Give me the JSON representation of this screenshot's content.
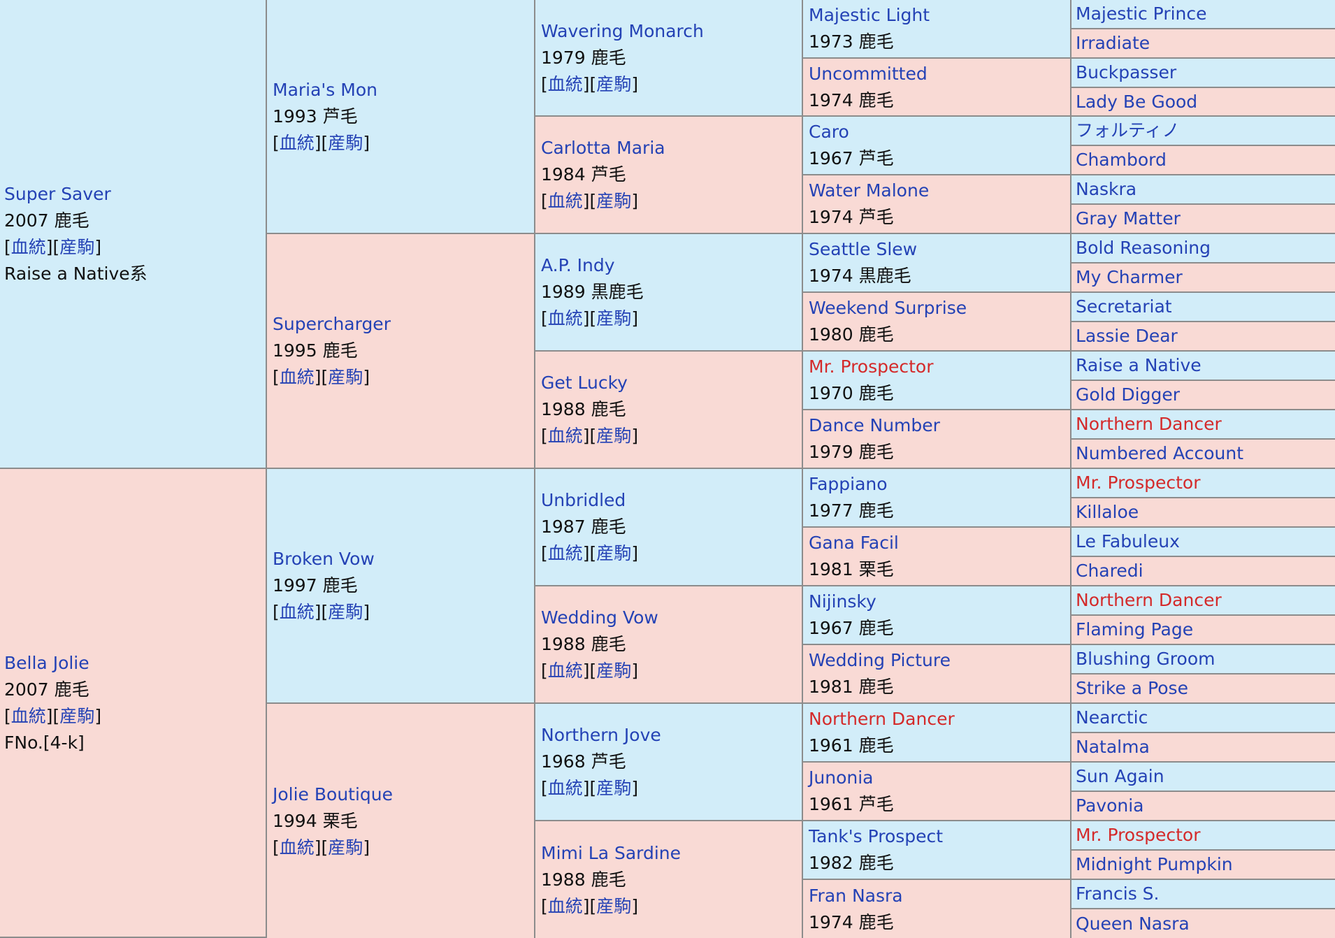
{
  "links": {
    "pedigree": "血統",
    "progeny": "産駒"
  },
  "gen1": [
    {
      "name": "Super Saver",
      "info": "2007 鹿毛",
      "extra": "Raise a Native系",
      "sex": "m"
    },
    {
      "name": "Bella Jolie",
      "info": "2007 鹿毛",
      "extra": "FNo.[4-k]",
      "sex": "f"
    }
  ],
  "gen2": [
    {
      "name": "Maria's Mon",
      "info": "1993 芦毛",
      "sex": "m"
    },
    {
      "name": "Supercharger",
      "info": "1995 鹿毛",
      "sex": "f"
    },
    {
      "name": "Broken Vow",
      "info": "1997 鹿毛",
      "sex": "m"
    },
    {
      "name": "Jolie Boutique",
      "info": "1994 栗毛",
      "sex": "f"
    }
  ],
  "gen3": [
    {
      "name": "Wavering Monarch",
      "info": "1979 鹿毛",
      "sex": "m"
    },
    {
      "name": "Carlotta Maria",
      "info": "1984 芦毛",
      "sex": "f"
    },
    {
      "name": "A.P. Indy",
      "info": "1989 黒鹿毛",
      "sex": "m"
    },
    {
      "name": "Get Lucky",
      "info": "1988 鹿毛",
      "sex": "f"
    },
    {
      "name": "Unbridled",
      "info": "1987 鹿毛",
      "sex": "m"
    },
    {
      "name": "Wedding Vow",
      "info": "1988 鹿毛",
      "sex": "f"
    },
    {
      "name": "Northern Jove",
      "info": "1968 芦毛",
      "sex": "m"
    },
    {
      "name": "Mimi La Sardine",
      "info": "1988 鹿毛",
      "sex": "f"
    }
  ],
  "gen4": [
    {
      "name": "Majestic Light",
      "info": "1973 鹿毛",
      "sex": "m",
      "highlight": false
    },
    {
      "name": "Uncommitted",
      "info": "1974 鹿毛",
      "sex": "f",
      "highlight": false
    },
    {
      "name": "Caro",
      "info": "1967 芦毛",
      "sex": "m",
      "highlight": false
    },
    {
      "name": "Water Malone",
      "info": "1974 芦毛",
      "sex": "f",
      "highlight": false
    },
    {
      "name": "Seattle Slew",
      "info": "1974 黒鹿毛",
      "sex": "m",
      "highlight": false
    },
    {
      "name": "Weekend Surprise",
      "info": "1980 鹿毛",
      "sex": "f",
      "highlight": false
    },
    {
      "name": "Mr. Prospector",
      "info": "1970 鹿毛",
      "sex": "m",
      "highlight": true
    },
    {
      "name": "Dance Number",
      "info": "1979 鹿毛",
      "sex": "f",
      "highlight": false
    },
    {
      "name": "Fappiano",
      "info": "1977 鹿毛",
      "sex": "m",
      "highlight": false
    },
    {
      "name": "Gana Facil",
      "info": "1981 栗毛",
      "sex": "f",
      "highlight": false
    },
    {
      "name": "Nijinsky",
      "info": "1967 鹿毛",
      "sex": "m",
      "highlight": false
    },
    {
      "name": "Wedding Picture",
      "info": "1981 鹿毛",
      "sex": "f",
      "highlight": false
    },
    {
      "name": "Northern Dancer",
      "info": "1961 鹿毛",
      "sex": "m",
      "highlight": true
    },
    {
      "name": "Junonia",
      "info": "1961 芦毛",
      "sex": "f",
      "highlight": false
    },
    {
      "name": "Tank's Prospect",
      "info": "1982 鹿毛",
      "sex": "m",
      "highlight": false
    },
    {
      "name": "Fran Nasra",
      "info": "1974 鹿毛",
      "sex": "f",
      "highlight": false
    }
  ],
  "gen5": [
    {
      "name": "Majestic Prince",
      "sex": "m",
      "highlight": false
    },
    {
      "name": "Irradiate",
      "sex": "f",
      "highlight": false
    },
    {
      "name": "Buckpasser",
      "sex": "m",
      "highlight": false
    },
    {
      "name": "Lady Be Good",
      "sex": "f",
      "highlight": false
    },
    {
      "name": "フォルティノ",
      "sex": "m",
      "highlight": false
    },
    {
      "name": "Chambord",
      "sex": "f",
      "highlight": false
    },
    {
      "name": "Naskra",
      "sex": "m",
      "highlight": false
    },
    {
      "name": "Gray Matter",
      "sex": "f",
      "highlight": false
    },
    {
      "name": "Bold Reasoning",
      "sex": "m",
      "highlight": false
    },
    {
      "name": "My Charmer",
      "sex": "f",
      "highlight": false
    },
    {
      "name": "Secretariat",
      "sex": "m",
      "highlight": false
    },
    {
      "name": "Lassie Dear",
      "sex": "f",
      "highlight": false
    },
    {
      "name": "Raise a Native",
      "sex": "m",
      "highlight": false
    },
    {
      "name": "Gold Digger",
      "sex": "f",
      "highlight": false
    },
    {
      "name": "Northern Dancer",
      "sex": "m",
      "highlight": true
    },
    {
      "name": "Numbered Account",
      "sex": "f",
      "highlight": false
    },
    {
      "name": "Mr. Prospector",
      "sex": "m",
      "highlight": true
    },
    {
      "name": "Killaloe",
      "sex": "f",
      "highlight": false
    },
    {
      "name": "Le Fabuleux",
      "sex": "m",
      "highlight": false
    },
    {
      "name": "Charedi",
      "sex": "f",
      "highlight": false
    },
    {
      "name": "Northern Dancer",
      "sex": "m",
      "highlight": true
    },
    {
      "name": "Flaming Page",
      "sex": "f",
      "highlight": false
    },
    {
      "name": "Blushing Groom",
      "sex": "m",
      "highlight": false
    },
    {
      "name": "Strike a Pose",
      "sex": "f",
      "highlight": false
    },
    {
      "name": "Nearctic",
      "sex": "m",
      "highlight": false
    },
    {
      "name": "Natalma",
      "sex": "f",
      "highlight": false
    },
    {
      "name": "Sun Again",
      "sex": "m",
      "highlight": false
    },
    {
      "name": "Pavonia",
      "sex": "f",
      "highlight": false
    },
    {
      "name": "Mr. Prospector",
      "sex": "m",
      "highlight": true
    },
    {
      "name": "Midnight Pumpkin",
      "sex": "f",
      "highlight": false
    },
    {
      "name": "Francis S.",
      "sex": "m",
      "highlight": false
    },
    {
      "name": "Queen Nasra",
      "sex": "f",
      "highlight": false
    }
  ]
}
